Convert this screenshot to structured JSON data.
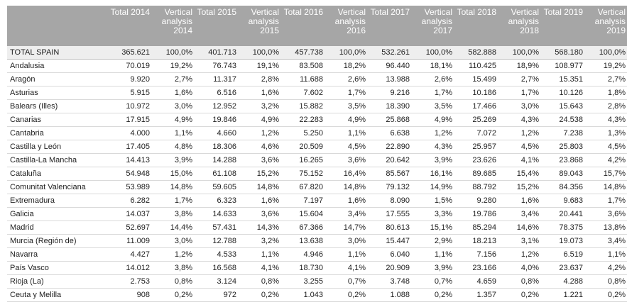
{
  "headers": [
    "",
    "Total 2014",
    "Vertical analysis 2014",
    "Total 2015",
    "Vertical analysis 2015",
    "Total 2016",
    "Vertical analysis 2016",
    "Total 2017",
    "Vertical analysis 2017",
    "Total 2018",
    "Vertical analysis 2018",
    "Total 2019",
    "Vertical analysis 2019"
  ],
  "rows": [
    [
      "TOTAL SPAIN",
      "365.621",
      "100,0%",
      "401.713",
      "100,0%",
      "457.738",
      "100,0%",
      "532.261",
      "100,0%",
      "582.888",
      "100,0%",
      "568.180",
      "100,0%"
    ],
    [
      "Andalusia",
      "70.019",
      "19,2%",
      "76.743",
      "19,1%",
      "83.508",
      "18,2%",
      "96.440",
      "18,1%",
      "110.425",
      "18,9%",
      "108.977",
      "19,2%"
    ],
    [
      "Aragón",
      "9.920",
      "2,7%",
      "11.317",
      "2,8%",
      "11.688",
      "2,6%",
      "13.988",
      "2,6%",
      "15.499",
      "2,7%",
      "15.351",
      "2,7%"
    ],
    [
      "Asturias",
      "5.915",
      "1,6%",
      "6.516",
      "1,6%",
      "7.602",
      "1,7%",
      "9.216",
      "1,7%",
      "10.186",
      "1,7%",
      "10.126",
      "1,8%"
    ],
    [
      "Balears (Illes)",
      "10.972",
      "3,0%",
      "12.952",
      "3,2%",
      "15.882",
      "3,5%",
      "18.390",
      "3,5%",
      "17.466",
      "3,0%",
      "15.643",
      "2,8%"
    ],
    [
      "Canarias",
      "17.915",
      "4,9%",
      "19.846",
      "4,9%",
      "22.283",
      "4,9%",
      "25.868",
      "4,9%",
      "25.269",
      "4,3%",
      "24.538",
      "4,3%"
    ],
    [
      "Cantabria",
      "4.000",
      "1,1%",
      "4.660",
      "1,2%",
      "5.250",
      "1,1%",
      "6.638",
      "1,2%",
      "7.072",
      "1,2%",
      "7.238",
      "1,3%"
    ],
    [
      "Castilla y León",
      "17.405",
      "4,8%",
      "18.306",
      "4,6%",
      "20.509",
      "4,5%",
      "22.890",
      "4,3%",
      "25.957",
      "4,5%",
      "25.803",
      "4,5%"
    ],
    [
      "Castilla-La Mancha",
      "14.413",
      "3,9%",
      "14.288",
      "3,6%",
      "16.265",
      "3,6%",
      "20.642",
      "3,9%",
      "23.626",
      "4,1%",
      "23.868",
      "4,2%"
    ],
    [
      "Cataluña",
      "54.948",
      "15,0%",
      "61.108",
      "15,2%",
      "75.152",
      "16,4%",
      "85.567",
      "16,1%",
      "89.685",
      "15,4%",
      "89.043",
      "15,7%"
    ],
    [
      "Comunitat Valenciana",
      "53.989",
      "14,8%",
      "59.605",
      "14,8%",
      "67.820",
      "14,8%",
      "79.132",
      "14,9%",
      "88.792",
      "15,2%",
      "84.356",
      "14,8%"
    ],
    [
      "Extremadura",
      "6.282",
      "1,7%",
      "6.323",
      "1,6%",
      "7.197",
      "1,6%",
      "8.090",
      "1,5%",
      "9.280",
      "1,6%",
      "9.683",
      "1,7%"
    ],
    [
      "Galicia",
      "14.037",
      "3,8%",
      "14.633",
      "3,6%",
      "15.604",
      "3,4%",
      "17.555",
      "3,3%",
      "19.786",
      "3,4%",
      "20.441",
      "3,6%"
    ],
    [
      "Madrid",
      "52.697",
      "14,4%",
      "57.431",
      "14,3%",
      "67.366",
      "14,7%",
      "80.613",
      "15,1%",
      "85.294",
      "14,6%",
      "78.375",
      "13,8%"
    ],
    [
      "Murcia (Región de)",
      "11.009",
      "3,0%",
      "12.788",
      "3,2%",
      "13.638",
      "3,0%",
      "15.447",
      "2,9%",
      "18.213",
      "3,1%",
      "19.073",
      "3,4%"
    ],
    [
      "Navarra",
      "4.427",
      "1,2%",
      "4.533",
      "1,1%",
      "4.946",
      "1,1%",
      "6.040",
      "1,1%",
      "7.156",
      "1,2%",
      "6.519",
      "1,1%"
    ],
    [
      "País Vasco",
      "14.012",
      "3,8%",
      "16.568",
      "4,1%",
      "18.730",
      "4,1%",
      "20.909",
      "3,9%",
      "23.166",
      "4,0%",
      "23.637",
      "4,2%"
    ],
    [
      "Rioja (La)",
      "2.753",
      "0,8%",
      "3.124",
      "0,8%",
      "3.255",
      "0,7%",
      "3.748",
      "0,7%",
      "4.659",
      "0,8%",
      "4.288",
      "0,8%"
    ],
    [
      "Ceuta y Melilla",
      "908",
      "0,2%",
      "972",
      "0,2%",
      "1.043",
      "0,2%",
      "1.088",
      "0,2%",
      "1.357",
      "0,2%",
      "1.221",
      "0,2%"
    ]
  ]
}
